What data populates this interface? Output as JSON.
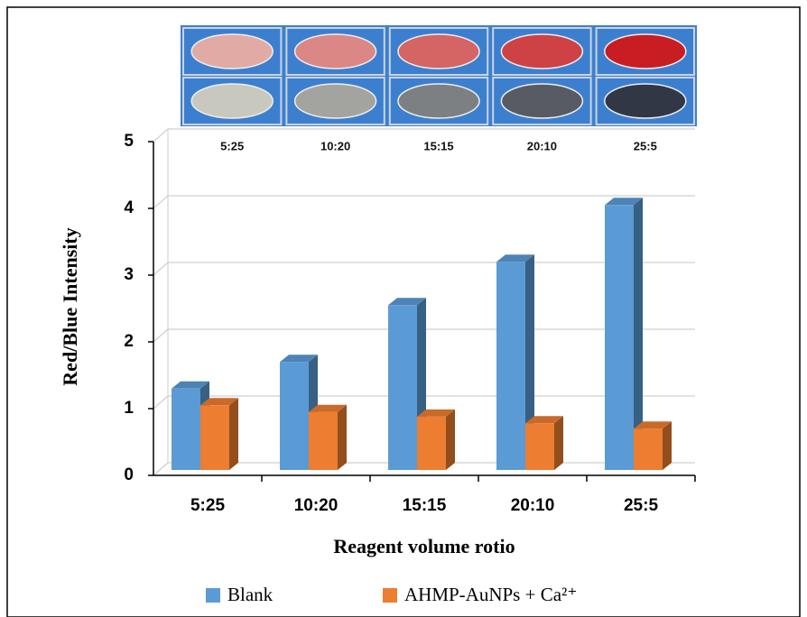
{
  "chart_data": {
    "type": "bar3d",
    "x_label": "Reagent volume rotio",
    "y_label": "Red/Blue Intensity",
    "categories": [
      "5:25",
      "10:20",
      "15:15",
      "20:10",
      "25:5"
    ],
    "series": [
      {
        "name": "Blank",
        "color": "#5b9bd5",
        "values": [
          1.3,
          1.7,
          2.55,
          3.2,
          4.05
        ]
      },
      {
        "name": "AHMP-AuNPs + Ca²⁺",
        "color": "#ed7d31",
        "values": [
          1.05,
          0.95,
          0.88,
          0.78,
          0.7
        ]
      }
    ],
    "ylim": [
      0,
      5
    ],
    "yticks": [
      0,
      1,
      2,
      3,
      4,
      5
    ],
    "grid": true,
    "legend": "bottom"
  }
}
